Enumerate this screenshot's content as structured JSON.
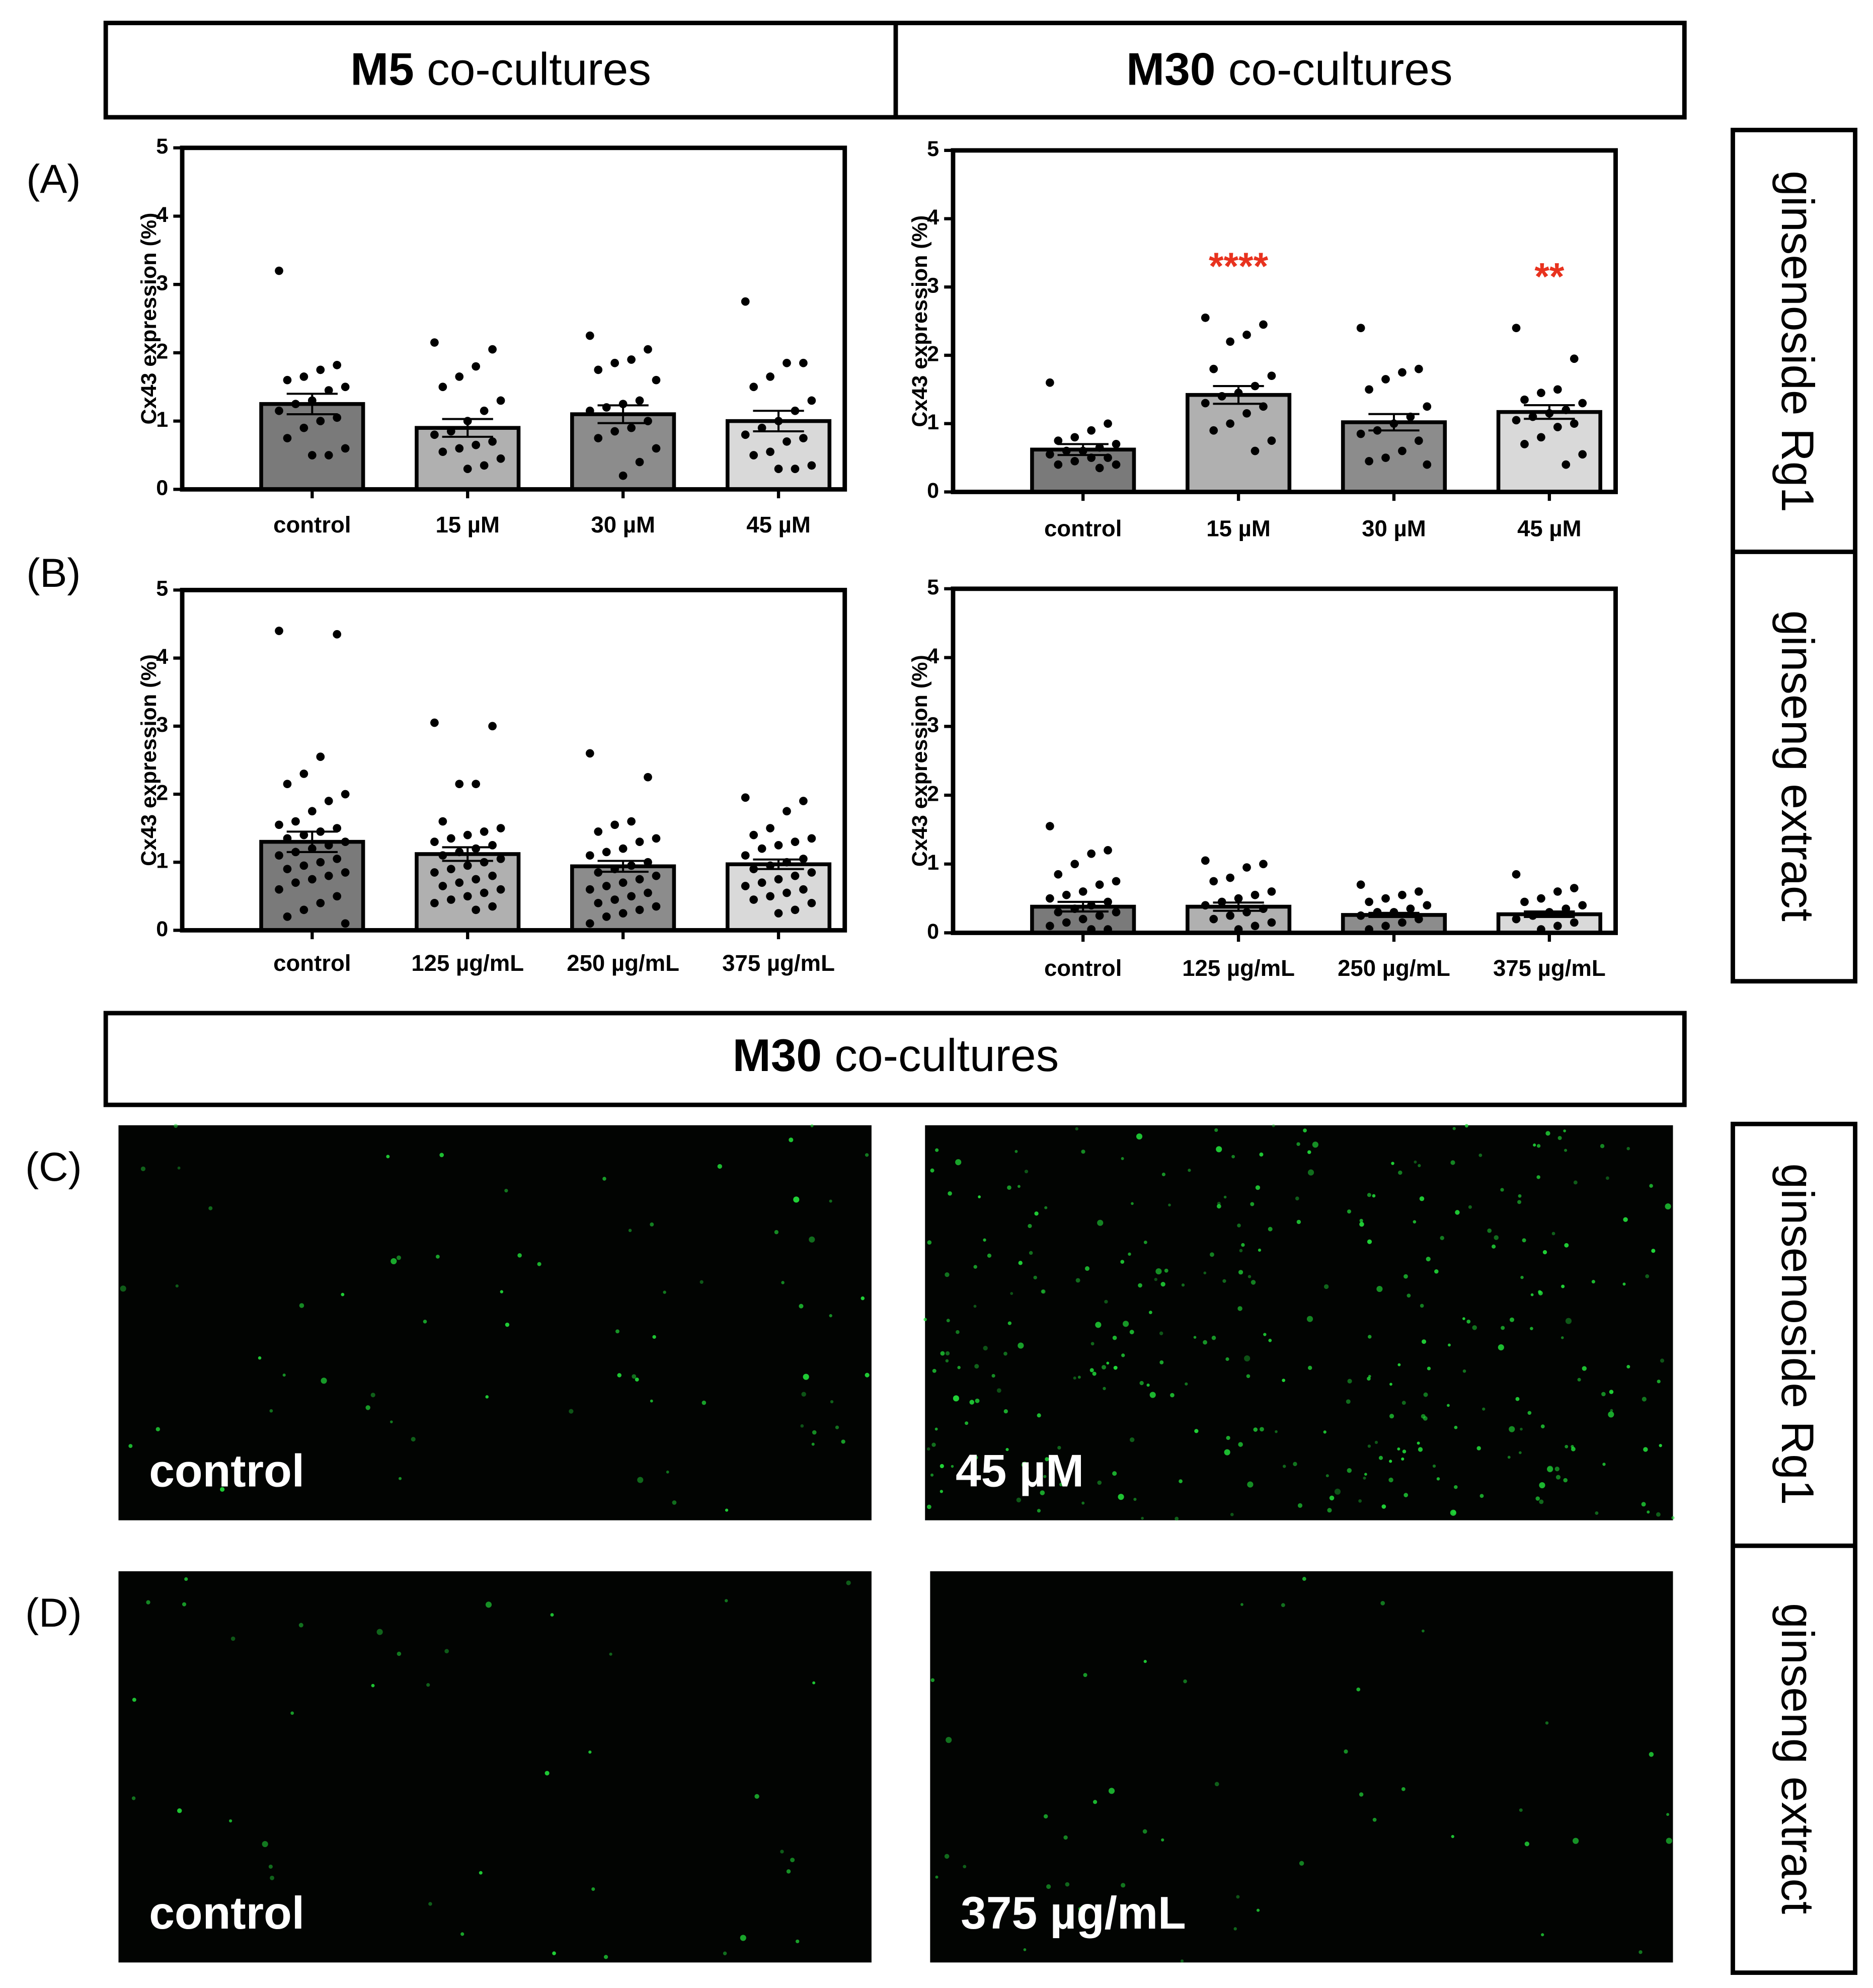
{
  "figure": {
    "top_headers": [
      {
        "bold": "M5",
        "rest": "co-cultures"
      },
      {
        "bold": "M30",
        "rest": "co-cultures"
      }
    ],
    "middle_header": {
      "bold": "M30",
      "rest": "co-cultures"
    },
    "panel_labels": [
      "(A)",
      "(B)",
      "(C)",
      "(D)"
    ],
    "row_labels": [
      "ginsenoside Rg1",
      "ginseng extract",
      "ginsenoside Rg1",
      "ginseng extract"
    ],
    "image_labels": [
      "control",
      "45 µM",
      "control",
      "375 µg/mL"
    ]
  },
  "chart_data": [
    {
      "type": "bar",
      "ylabel": "Cx43 expression (%)",
      "categories": [
        "control",
        "15 µM",
        "30 µM",
        "45 µM"
      ],
      "values": [
        1.25,
        0.9,
        1.1,
        1.0
      ],
      "errors": [
        0.15,
        0.13,
        0.13,
        0.15
      ],
      "colors": [
        "#7a7a7a",
        "#b0b0b0",
        "#8c8c8c",
        "#d9d9d9"
      ],
      "points": [
        [
          3.2,
          1.82,
          1.75,
          1.65,
          1.6,
          1.5,
          1.45,
          1.3,
          1.25,
          1.15,
          1.05,
          1.0,
          0.9,
          0.75,
          0.6,
          0.5,
          0.5
        ],
        [
          2.15,
          2.05,
          1.8,
          1.65,
          1.5,
          1.3,
          1.15,
          1.0,
          0.85,
          0.8,
          0.7,
          0.65,
          0.6,
          0.55,
          0.45,
          0.35,
          0.3
        ],
        [
          2.25,
          2.05,
          1.9,
          1.85,
          1.75,
          1.6,
          1.3,
          1.25,
          1.2,
          1.15,
          1.0,
          0.9,
          0.85,
          0.75,
          0.6,
          0.4,
          0.2
        ],
        [
          2.75,
          1.85,
          1.85,
          1.65,
          1.5,
          1.3,
          1.15,
          1.0,
          0.9,
          0.8,
          0.75,
          0.7,
          0.55,
          0.5,
          0.35,
          0.3,
          0.3
        ]
      ],
      "ylim": [
        0,
        5
      ],
      "yticks": [
        0,
        1,
        2,
        3,
        4,
        5
      ]
    },
    {
      "type": "bar",
      "ylabel": "Cx43 expression (%)",
      "categories": [
        "control",
        "15 µM",
        "30 µM",
        "45 µM"
      ],
      "values": [
        0.62,
        1.42,
        1.02,
        1.17
      ],
      "errors": [
        0.08,
        0.13,
        0.12,
        0.1
      ],
      "colors": [
        "#7a7a7a",
        "#b0b0b0",
        "#8c8c8c",
        "#d9d9d9"
      ],
      "significance": [
        null,
        "****",
        null,
        "**"
      ],
      "significance_color": "#e8321e",
      "points": [
        [
          1.6,
          1.0,
          0.9,
          0.8,
          0.75,
          0.7,
          0.65,
          0.6,
          0.6,
          0.55,
          0.5,
          0.5,
          0.45,
          0.4,
          0.4,
          0.35
        ],
        [
          2.55,
          2.45,
          2.3,
          2.2,
          1.8,
          1.7,
          1.55,
          1.45,
          1.4,
          1.3,
          1.25,
          1.15,
          1.0,
          0.9,
          0.75,
          0.6
        ],
        [
          2.4,
          1.8,
          1.75,
          1.65,
          1.5,
          1.25,
          1.1,
          1.0,
          0.9,
          0.85,
          0.75,
          0.6,
          0.5,
          0.45,
          0.4
        ],
        [
          2.4,
          1.95,
          1.5,
          1.45,
          1.35,
          1.3,
          1.2,
          1.15,
          1.1,
          1.05,
          1.0,
          0.95,
          0.8,
          0.7,
          0.55,
          0.4
        ]
      ],
      "ylim": [
        0,
        5
      ],
      "yticks": [
        0,
        1,
        2,
        3,
        4,
        5
      ]
    },
    {
      "type": "bar",
      "ylabel": "Cx43 expression (%)",
      "categories": [
        "control",
        "125 µg/mL",
        "250 µg/mL",
        "375 µg/mL"
      ],
      "values": [
        1.3,
        1.12,
        0.94,
        0.97
      ],
      "errors": [
        0.15,
        0.1,
        0.08,
        0.07
      ],
      "colors": [
        "#7a7a7a",
        "#b0b0b0",
        "#8c8c8c",
        "#d9d9d9"
      ],
      "points": [
        [
          4.4,
          4.35,
          2.55,
          2.3,
          2.15,
          2.0,
          1.9,
          1.75,
          1.6,
          1.55,
          1.5,
          1.45,
          1.4,
          1.35,
          1.3,
          1.25,
          1.2,
          1.15,
          1.1,
          1.05,
          1.0,
          0.95,
          0.9,
          0.85,
          0.8,
          0.75,
          0.7,
          0.6,
          0.5,
          0.4,
          0.3,
          0.2,
          0.1
        ],
        [
          3.05,
          3.0,
          2.15,
          2.15,
          1.6,
          1.5,
          1.45,
          1.4,
          1.35,
          1.3,
          1.25,
          1.2,
          1.15,
          1.1,
          1.05,
          1.0,
          0.95,
          0.9,
          0.85,
          0.8,
          0.75,
          0.7,
          0.65,
          0.6,
          0.55,
          0.5,
          0.45,
          0.4,
          0.35,
          0.3
        ],
        [
          2.6,
          2.25,
          1.6,
          1.55,
          1.45,
          1.35,
          1.3,
          1.2,
          1.15,
          1.1,
          1.0,
          0.95,
          0.9,
          0.85,
          0.8,
          0.75,
          0.7,
          0.65,
          0.6,
          0.55,
          0.5,
          0.45,
          0.4,
          0.35,
          0.3,
          0.25,
          0.2,
          0.1
        ],
        [
          1.95,
          1.9,
          1.75,
          1.5,
          1.4,
          1.35,
          1.3,
          1.25,
          1.2,
          1.1,
          1.05,
          1.0,
          0.95,
          0.9,
          0.85,
          0.8,
          0.75,
          0.7,
          0.65,
          0.6,
          0.55,
          0.5,
          0.45,
          0.4,
          0.3,
          0.25
        ]
      ],
      "ylim": [
        0,
        5
      ],
      "yticks": [
        0,
        1,
        2,
        3,
        4,
        5
      ]
    },
    {
      "type": "bar",
      "ylabel": "Cx43 expression (%)",
      "categories": [
        "control",
        "125 µg/mL",
        "250 µg/mL",
        "375 µg/mL"
      ],
      "values": [
        0.38,
        0.38,
        0.26,
        0.27
      ],
      "errors": [
        0.07,
        0.06,
        0.03,
        0.04
      ],
      "colors": [
        "#7a7a7a",
        "#b0b0b0",
        "#8c8c8c",
        "#d9d9d9"
      ],
      "points": [
        [
          1.55,
          1.2,
          1.15,
          1.0,
          0.85,
          0.75,
          0.7,
          0.6,
          0.55,
          0.5,
          0.45,
          0.4,
          0.35,
          0.3,
          0.3,
          0.25,
          0.2,
          0.15,
          0.1,
          0.05,
          0.05
        ],
        [
          1.05,
          1.0,
          0.95,
          0.8,
          0.75,
          0.6,
          0.55,
          0.5,
          0.45,
          0.4,
          0.35,
          0.3,
          0.25,
          0.2,
          0.15,
          0.1,
          0.05
        ],
        [
          0.7,
          0.6,
          0.55,
          0.5,
          0.45,
          0.4,
          0.35,
          0.3,
          0.3,
          0.25,
          0.2,
          0.15,
          0.1,
          0.05
        ],
        [
          0.85,
          0.65,
          0.6,
          0.5,
          0.45,
          0.4,
          0.35,
          0.3,
          0.25,
          0.2,
          0.15,
          0.1,
          0.05
        ]
      ],
      "ylim": [
        0,
        5
      ],
      "yticks": [
        0,
        1,
        2,
        3,
        4,
        5
      ]
    }
  ]
}
